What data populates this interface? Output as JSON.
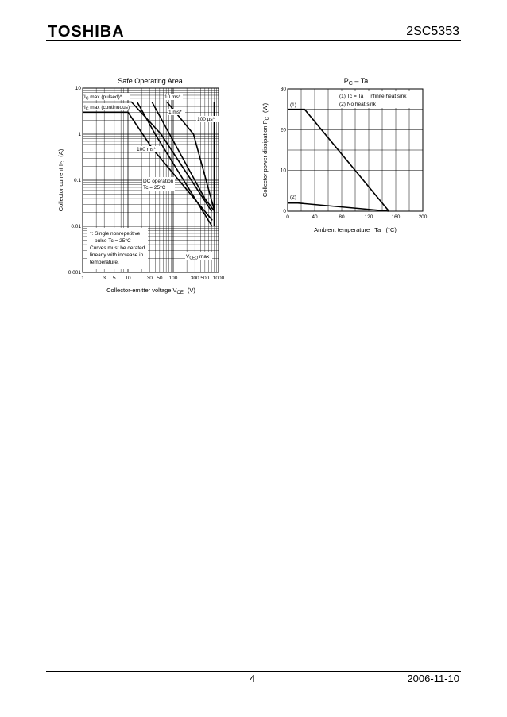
{
  "header": {
    "brand": "TOSHIBA",
    "part_number": "2SC5353"
  },
  "footer": {
    "page_number": "4",
    "date": "2006-11-10"
  },
  "chart_data": [
    {
      "type": "line",
      "title": "Safe Operating Area",
      "xlabel": "Collector-emitter voltage",
      "xlabel_symbol": "V",
      "xlabel_sub": "CE",
      "xlabel_unit": "(V)",
      "ylabel": "Collector current",
      "ylabel_symbol": "I",
      "ylabel_sub": "C",
      "ylabel_unit": "(A)",
      "xscale": "log",
      "yscale": "log",
      "xlim": [
        1,
        1000
      ],
      "ylim": [
        0.001,
        10
      ],
      "x_ticks": [
        1,
        3,
        5,
        10,
        30,
        50,
        100,
        300,
        500,
        1000
      ],
      "x_tick_labels": [
        "1",
        "3",
        "5",
        "10",
        "30",
        "50",
        "100",
        "300",
        "500",
        "1000"
      ],
      "y_ticks": [
        0.001,
        0.01,
        0.1,
        1,
        10
      ],
      "y_tick_labels": [
        "0.001",
        "0.01",
        "0.1",
        "1",
        "10"
      ],
      "grid": true,
      "series": [
        {
          "name": "10 ms*",
          "x": [
            1,
            12,
            54,
            710
          ],
          "y": [
            5,
            5,
            1,
            0.021
          ]
        },
        {
          "name": "1 ms*",
          "x": [
            34,
            500,
            820
          ],
          "y": [
            5,
            0.04,
            0.021
          ]
        },
        {
          "name": "100 µs*",
          "x": [
            73,
            280,
            820
          ],
          "y": [
            5,
            1,
            0.021
          ]
        },
        {
          "name": "100 ms*",
          "x": [
            16,
            40,
            720
          ],
          "y": [
            5,
            1,
            0.01
          ]
        },
        {
          "name": "DC operation Tc = 25°C",
          "x": [
            1,
            10,
            34,
            730
          ],
          "y": [
            3,
            3,
            0.5,
            0.0135
          ]
        },
        {
          "name": "VCEO max",
          "x": [
            800,
            800
          ],
          "y": [
            5,
            0.01
          ]
        }
      ],
      "annotations": [
        {
          "text": "IC max (pulsed)*",
          "symbol": "I",
          "sub": "C",
          "rest": " max (pulsed)*"
        },
        {
          "text": "IC max (continuous)",
          "symbol": "I",
          "sub": "C",
          "rest": " max (continuous)"
        },
        {
          "text": "10 ms*"
        },
        {
          "text": "1 ms*"
        },
        {
          "text": "100 µs*"
        },
        {
          "text": "100 ms*"
        },
        {
          "text": "DC operation"
        },
        {
          "text": "Tc = 25°C"
        },
        {
          "text": "VCEO max",
          "symbol": "V",
          "sub": "CEO",
          "rest": " max"
        }
      ],
      "note": [
        "*: Single nonrepetitive",
        "pulse   Tc = 25°C",
        "Curves must be derated",
        "linearly with increase in",
        "temperature."
      ]
    },
    {
      "type": "line",
      "title": "PC – Ta",
      "title_symbol": "P",
      "title_sub": "C",
      "title_rest": " – Ta",
      "xlabel": "Ambient temperature   Ta   (°C)",
      "ylabel": "Collector power dissipation",
      "ylabel_symbol": "P",
      "ylabel_sub": "C",
      "ylabel_unit": "(W)",
      "xlim": [
        0,
        200
      ],
      "ylim": [
        0,
        30
      ],
      "x_ticks": [
        0,
        40,
        80,
        120,
        160,
        200
      ],
      "x_tick_labels": [
        "0",
        "40",
        "80",
        "120",
        "160",
        "200"
      ],
      "y_ticks": [
        0,
        10,
        20,
        30
      ],
      "y_tick_labels": [
        "0",
        "10",
        "20",
        "30"
      ],
      "grid": true,
      "series": [
        {
          "name": "(1)",
          "x": [
            0,
            25,
            150
          ],
          "y": [
            25,
            25,
            0
          ]
        },
        {
          "name": "(2)",
          "x": [
            0,
            15,
            150
          ],
          "y": [
            2,
            2,
            0
          ]
        }
      ],
      "legend": [
        "(1) Tc = Ta    Infinite heat sink",
        "(2) No heat sink"
      ]
    }
  ]
}
